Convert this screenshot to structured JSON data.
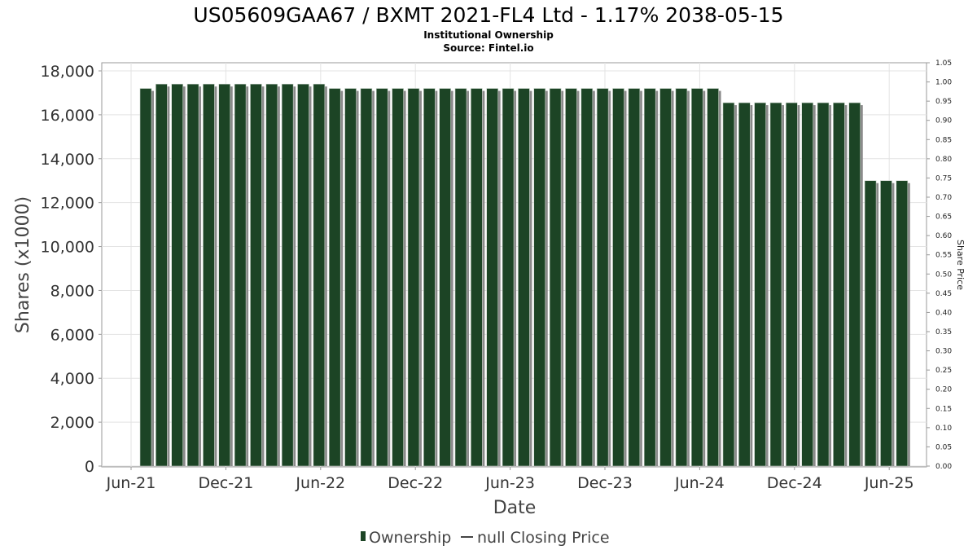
{
  "chart_data": {
    "type": "bar",
    "title": "US05609GAA67 / BXMT 2021-FL4 Ltd - 1.17% 2038-05-15",
    "subtitle_lines": [
      "Institutional Ownership",
      "Source: Fintel.io"
    ],
    "xlabel": "Date",
    "ylabel": "Shares (x1000)",
    "y2label": "Share Price",
    "ylim": [
      0,
      18000
    ],
    "y2lim": [
      0,
      1.05
    ],
    "y_ticks": [
      "0",
      "2,000",
      "4,000",
      "6,000",
      "8,000",
      "10,000",
      "12,000",
      "14,000",
      "16,000",
      "18,000"
    ],
    "y2_ticks": [
      "0.00",
      "0.05",
      "0.10",
      "0.15",
      "0.20",
      "0.25",
      "0.30",
      "0.35",
      "0.40",
      "0.45",
      "0.50",
      "0.55",
      "0.60",
      "0.65",
      "0.70",
      "0.75",
      "0.80",
      "0.85",
      "0.90",
      "0.95",
      "1.00",
      "1.05"
    ],
    "x_ticks": [
      "Jun-21",
      "Dec-21",
      "Jun-22",
      "Dec-22",
      "Jun-23",
      "Dec-23",
      "Jun-24",
      "Dec-24",
      "Jun-25"
    ],
    "grid": true,
    "legend_position": "bottom",
    "series": [
      {
        "name": "Ownership",
        "color": "#1c4425",
        "values": [
          17200,
          17400,
          17400,
          17400,
          17400,
          17400,
          17400,
          17400,
          17400,
          17400,
          17400,
          17400,
          17200,
          17200,
          17200,
          17200,
          17200,
          17200,
          17200,
          17200,
          17200,
          17200,
          17200,
          17200,
          17200,
          17200,
          17200,
          17200,
          17200,
          17200,
          17200,
          17200,
          17200,
          17200,
          17200,
          17200,
          17200,
          16550,
          16550,
          16550,
          16550,
          16550,
          16550,
          16550,
          16550,
          16550,
          13000,
          13000,
          13000
        ]
      },
      {
        "name": "null Closing Price",
        "color": "#444444",
        "values": []
      }
    ]
  }
}
